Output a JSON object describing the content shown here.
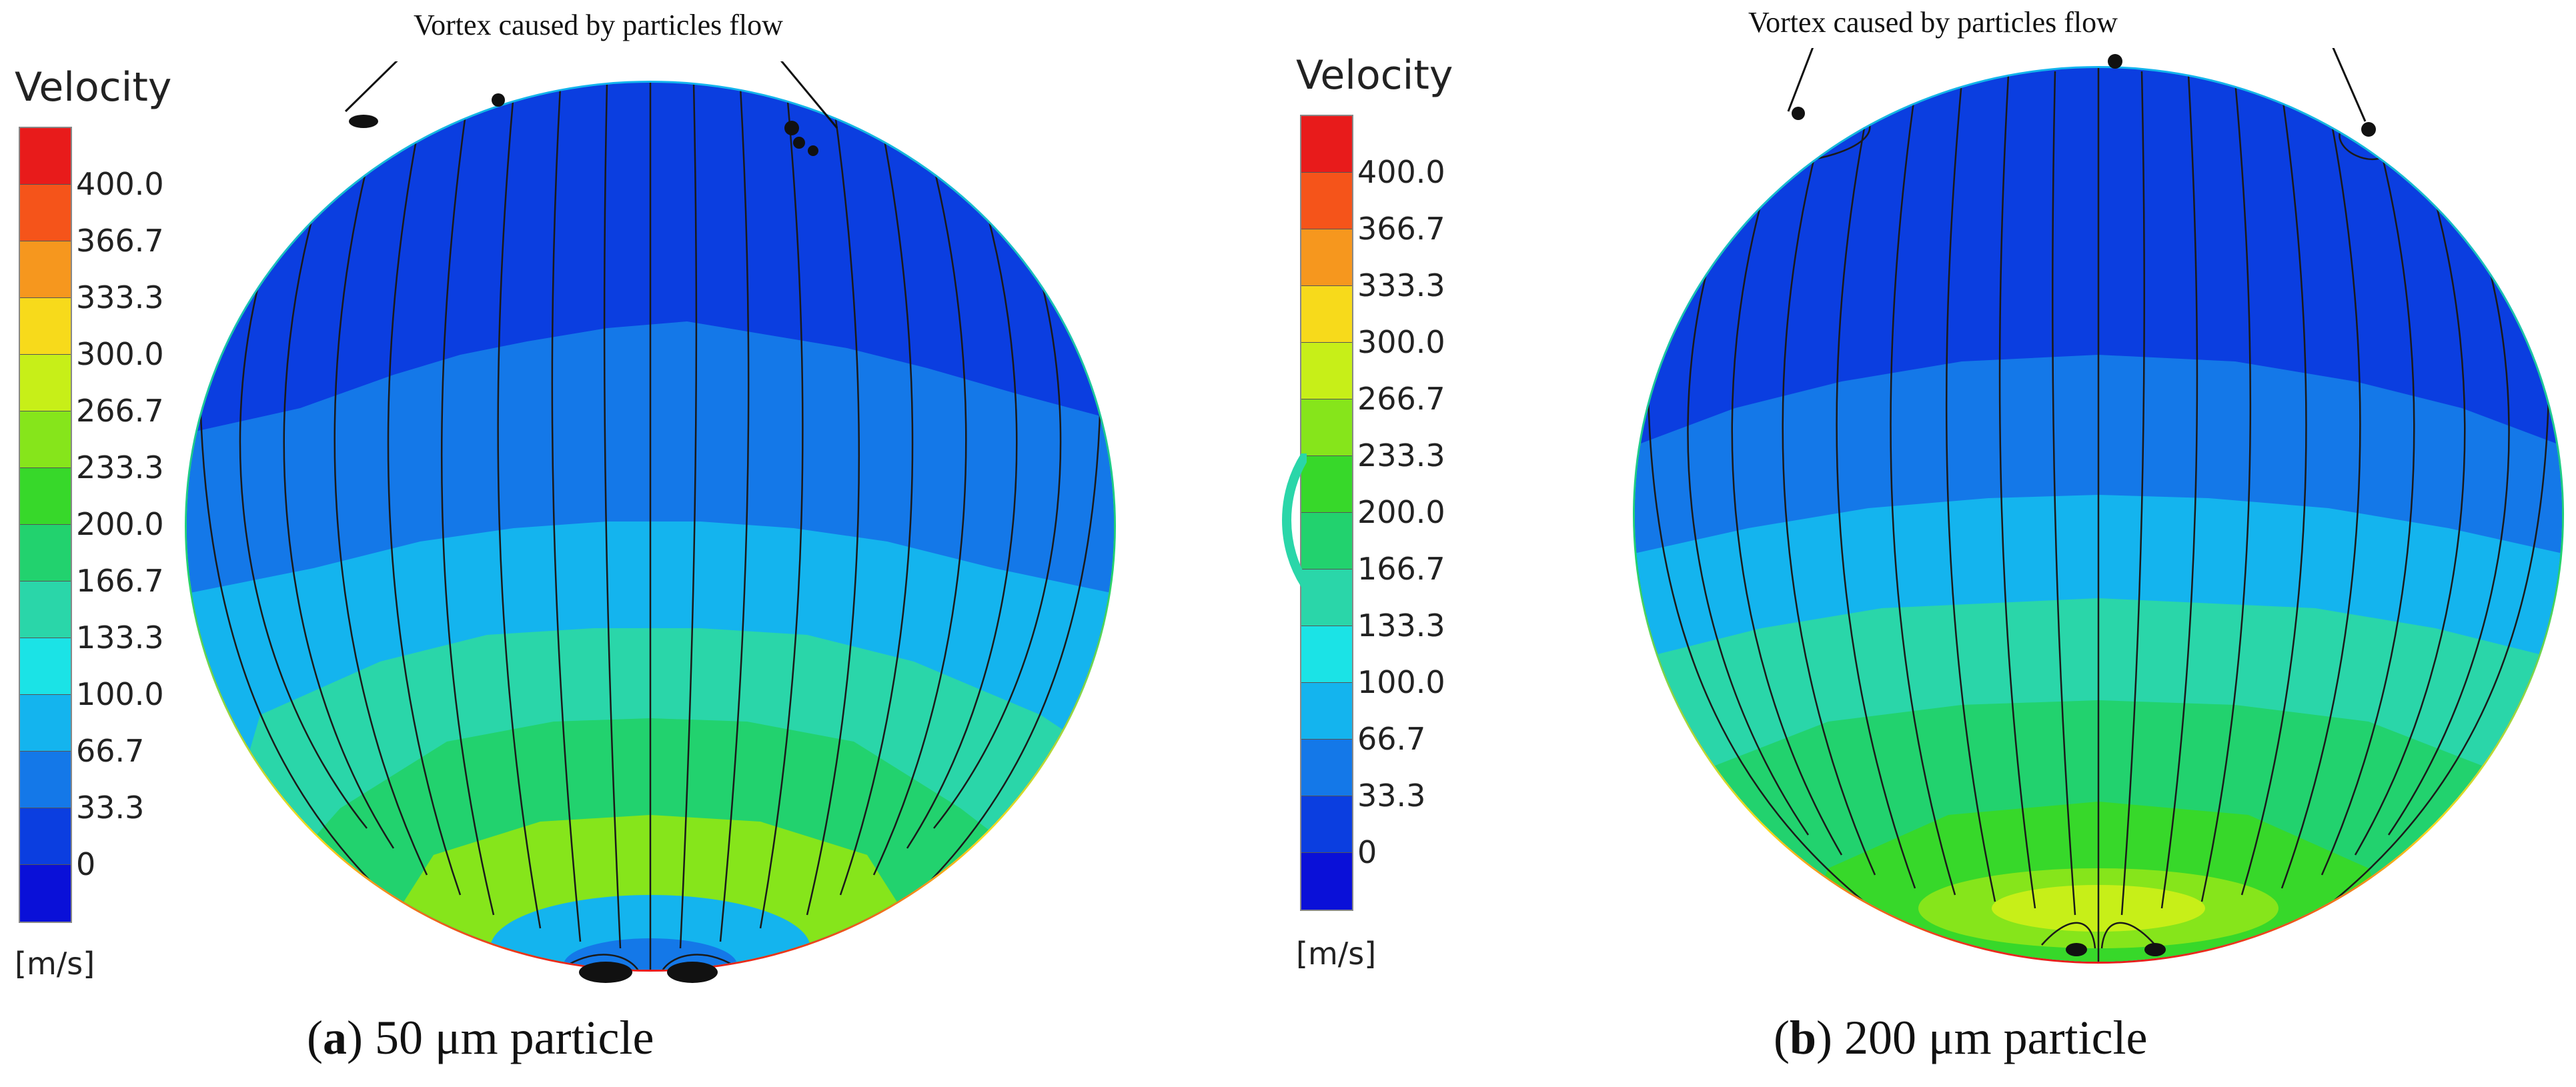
{
  "legend": {
    "title": "Velocity",
    "unit": "[m/s]",
    "ticks": [
      "400.0",
      "366.7",
      "333.3",
      "300.0",
      "266.7",
      "233.3",
      "200.0",
      "166.7",
      "133.3",
      "100.0",
      "66.7",
      "33.3",
      "0"
    ],
    "colors": [
      "#e81b1b",
      "#f5541a",
      "#f6971e",
      "#f7da1b",
      "#c7ef18",
      "#86e51b",
      "#37d82a",
      "#22d26e",
      "#2ad6a9",
      "#1be3e6",
      "#14b4ee",
      "#1478e8",
      "#0b3ee0",
      "#0a10d8"
    ]
  },
  "panels": [
    {
      "annotation": "Vortex caused by particles flow",
      "caption_label": "a",
      "caption_text": "50 μm particle"
    },
    {
      "annotation": "Vortex caused by particles flow",
      "caption_label": "b",
      "caption_text": "200 μm particle"
    }
  ]
}
